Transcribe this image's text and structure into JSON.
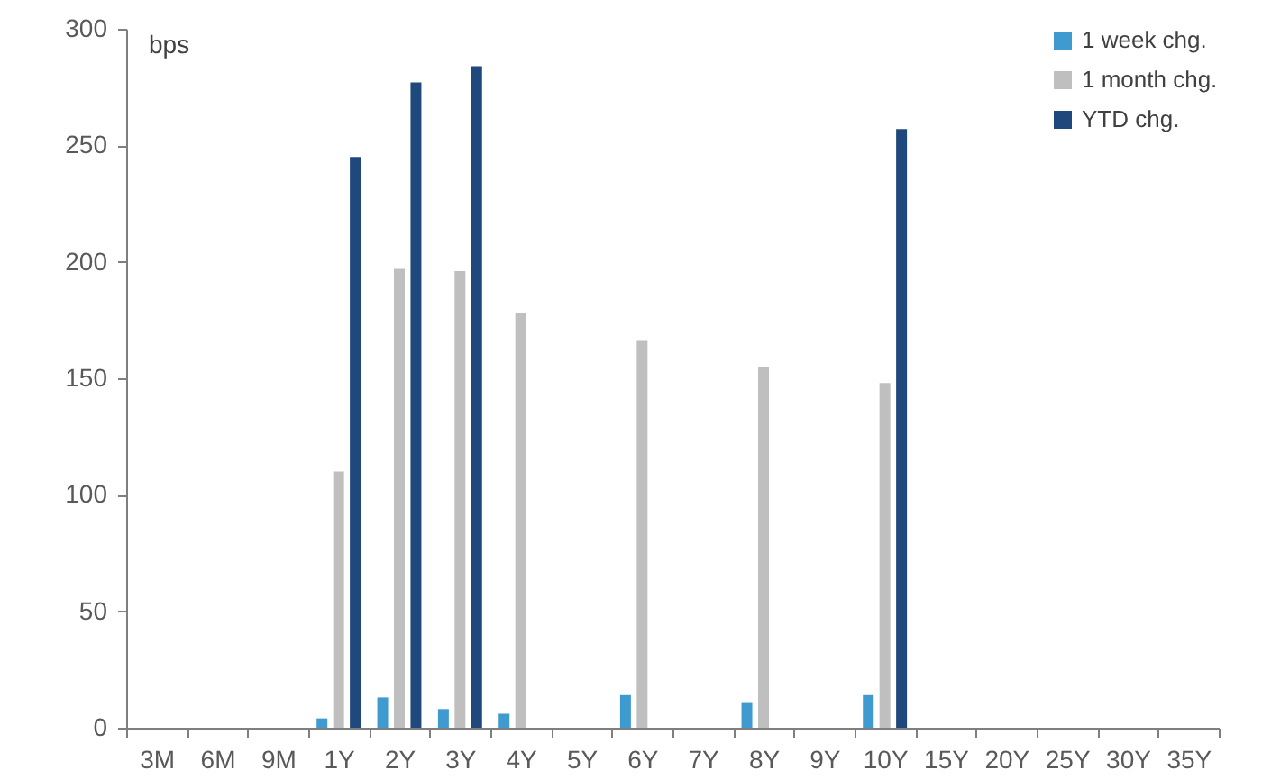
{
  "chart_data": {
    "type": "bar",
    "ylabel": "bps",
    "categories": [
      "3M",
      "6M",
      "9M",
      "1Y",
      "2Y",
      "3Y",
      "4Y",
      "5Y",
      "6Y",
      "7Y",
      "8Y",
      "9Y",
      "10Y",
      "15Y",
      "20Y",
      "25Y",
      "30Y",
      "35Y"
    ],
    "series": [
      {
        "name": "1 week chg.",
        "color": "#3f9ad0",
        "values": [
          null,
          null,
          null,
          4,
          13,
          8,
          6,
          null,
          14,
          null,
          11,
          null,
          14,
          null,
          null,
          null,
          null,
          null
        ]
      },
      {
        "name": "1 month chg.",
        "color": "#bfbfbf",
        "values": [
          null,
          null,
          null,
          110,
          197,
          196,
          178,
          null,
          166,
          null,
          155,
          null,
          148,
          null,
          null,
          null,
          null,
          null
        ]
      },
      {
        "name": "YTD chg.",
        "color": "#1f497d",
        "values": [
          null,
          null,
          null,
          245,
          277,
          284,
          null,
          null,
          null,
          null,
          null,
          null,
          257,
          null,
          null,
          null,
          null,
          null
        ]
      }
    ],
    "ylim": [
      0,
      300
    ],
    "yticks": [
      0,
      50,
      100,
      150,
      200,
      250,
      300
    ],
    "legend": "top right"
  }
}
